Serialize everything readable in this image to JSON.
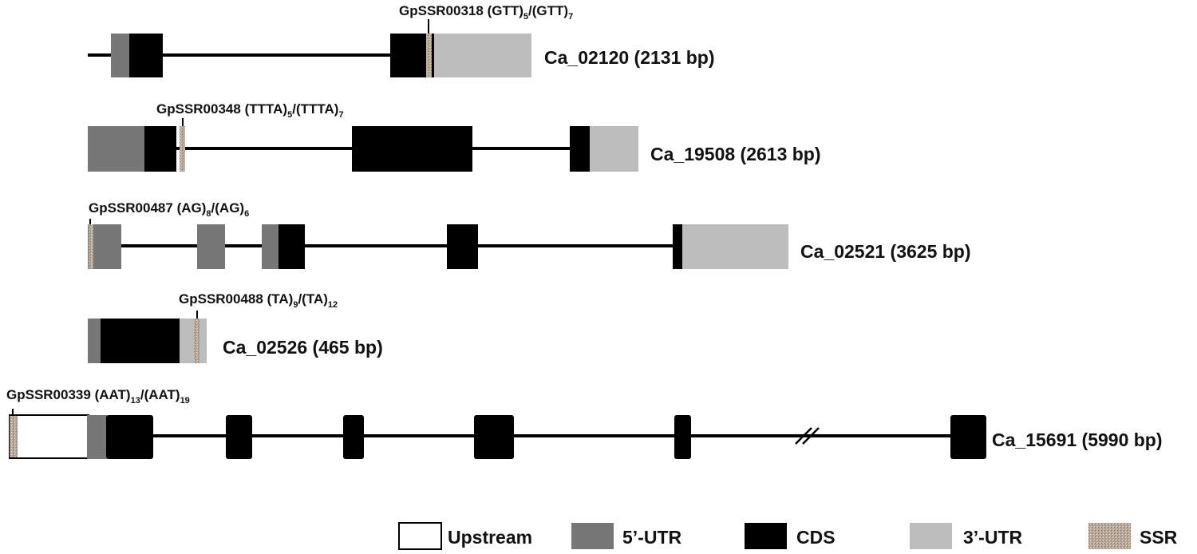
{
  "colors": {
    "intron": "#000000",
    "upstream": "#ffffff",
    "utr5": "#777777",
    "cds": "#000000",
    "utr3": "#bdbdbd",
    "ssr": "#b9a99a"
  },
  "genes": [
    {
      "name": "Ca_02120 (2131 bp)",
      "ssr": {
        "id": "GpSSR00318",
        "motif_a": "(GTT)",
        "count_a": "5",
        "sep": "/",
        "motif_b": "(GTT)",
        "count_b": "7"
      }
    },
    {
      "name": "Ca_19508 (2613 bp)",
      "ssr": {
        "id": "GpSSR00348",
        "motif_a": "(TTTA)",
        "count_a": "5",
        "sep": "/",
        "motif_b": "(TTTA)",
        "count_b": "7"
      }
    },
    {
      "name": "Ca_02521 (3625 bp)",
      "ssr": {
        "id": "GpSSR00487",
        "motif_a": "(AG)",
        "count_a": "8",
        "sep": "/",
        "motif_b": "(AG)",
        "count_b": "6"
      }
    },
    {
      "name": "Ca_02526 (465 bp)",
      "ssr": {
        "id": "GpSSR00488",
        "motif_a": "(TA)",
        "count_a": "9",
        "sep": "/",
        "motif_b": "(TA)",
        "count_b": "12"
      }
    },
    {
      "name": "Ca_15691 (5990 bp)",
      "ssr": {
        "id": "GpSSR00339",
        "motif_a": "(AAT)",
        "count_a": "13",
        "sep": "/",
        "motif_b": "(AAT)",
        "count_b": "19"
      }
    }
  ],
  "legend": {
    "upstream": "Upstream",
    "utr5": "5’-UTR",
    "cds": "CDS",
    "utr3": "3’-UTR",
    "ssr": "SSR"
  }
}
